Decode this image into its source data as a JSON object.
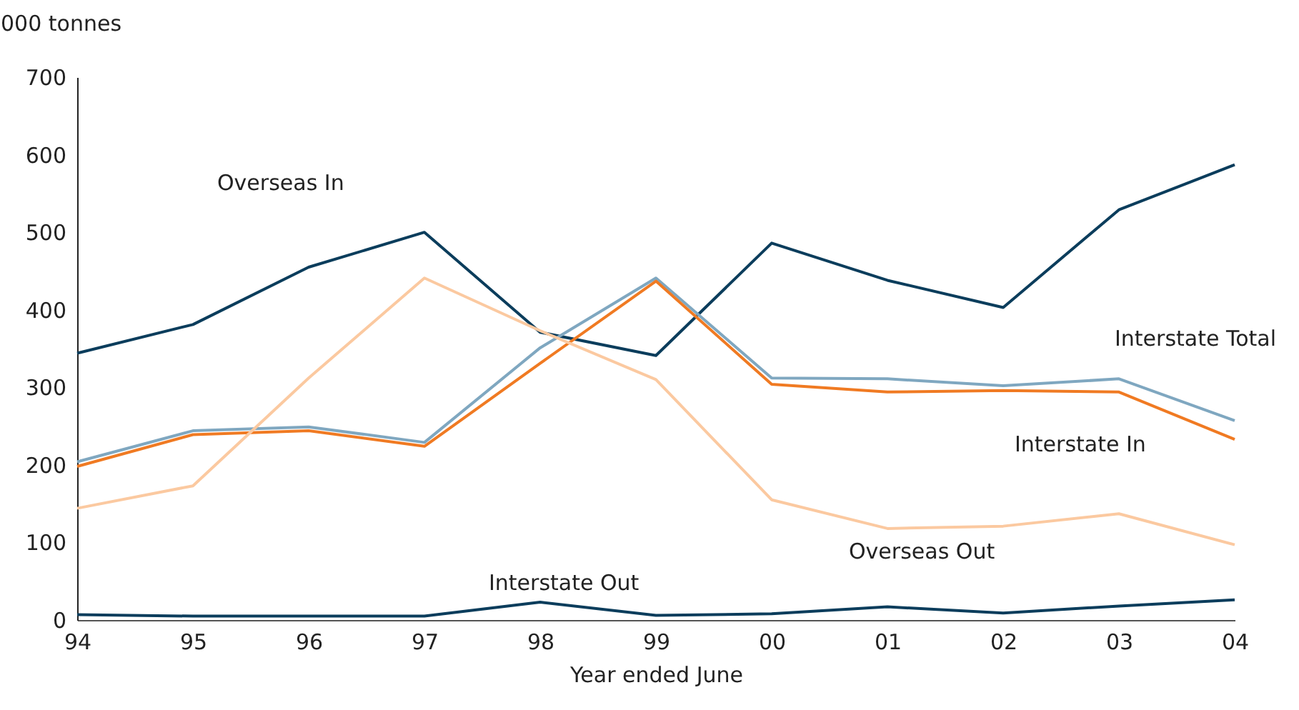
{
  "chart_data": {
    "type": "line",
    "ylabel": "000 tonnes",
    "xlabel": "Year ended June",
    "categories": [
      "94",
      "95",
      "96",
      "97",
      "98",
      "99",
      "00",
      "01",
      "02",
      "03",
      "04"
    ],
    "ylim": [
      0,
      700
    ],
    "yticks": [
      0,
      100,
      200,
      300,
      400,
      500,
      600,
      700
    ],
    "grid": false,
    "marker": "none",
    "line_style": "solid",
    "series": [
      {
        "name": "Overseas In",
        "color": "#0b3d5c",
        "values": [
          344,
          381,
          455,
          500,
          371,
          341,
          486,
          438,
          403,
          529,
          587
        ]
      },
      {
        "name": "Interstate Total",
        "color": "#7fa7c0",
        "values": [
          204,
          244,
          249,
          229,
          351,
          441,
          312,
          311,
          302,
          311,
          257
        ]
      },
      {
        "name": "Interstate In",
        "color": "#f07a22",
        "values": [
          198,
          239,
          244,
          224,
          331,
          437,
          304,
          294,
          296,
          294,
          233
        ]
      },
      {
        "name": "Overseas Out",
        "color": "#fbc9a0",
        "values": [
          144,
          173,
          312,
          441,
          373,
          310,
          155,
          118,
          121,
          137,
          97
        ]
      },
      {
        "name": "Interstate Out",
        "color": "#0b3d5c",
        "values": [
          7,
          5,
          5,
          5,
          23,
          6,
          8,
          17,
          9,
          18,
          26
        ]
      }
    ]
  }
}
